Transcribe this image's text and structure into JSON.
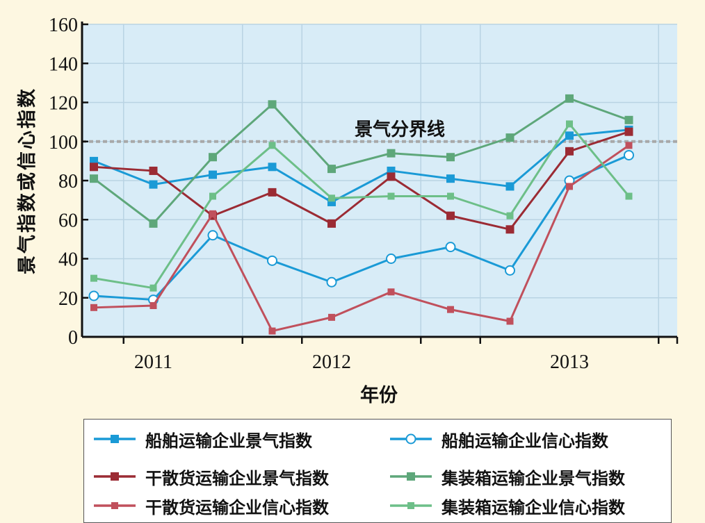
{
  "chart_data": {
    "type": "line",
    "title": "",
    "xlabel": "年份",
    "ylabel": "景气指数或信心指数",
    "ylim": [
      0,
      160
    ],
    "yticks": [
      0,
      20,
      40,
      60,
      80,
      100,
      120,
      140,
      160
    ],
    "xlim": [
      0,
      11.6
    ],
    "x_tick_labels": [
      {
        "label": "2011",
        "x": 1.0
      },
      {
        "label": "2012",
        "x": 4.0
      },
      {
        "label": "2013",
        "x": 8.0
      }
    ],
    "x": [
      0,
      1,
      2,
      3,
      4,
      5,
      6,
      7,
      8,
      9,
      10
    ],
    "grid": true,
    "reference_line": {
      "y": 100,
      "label": "景气分界线",
      "color": "#a8a8a8"
    },
    "legend_position": "bottom",
    "series": [
      {
        "name": "船舶运输企业景气指数",
        "color": "#1a9ad6",
        "marker": "square",
        "style": "solid",
        "values": [
          90,
          78,
          83,
          87,
          69,
          85,
          81,
          77,
          103,
          106,
          null
        ]
      },
      {
        "name": "船舶运输企业信心指数",
        "color": "#1a9ad6",
        "marker": "circle-open",
        "style": "solid",
        "values": [
          21,
          19,
          52,
          39,
          28,
          40,
          46,
          34,
          80,
          93,
          null
        ]
      },
      {
        "name": "干散货运输企业景气指数",
        "color": "#9b2b34",
        "marker": "square",
        "style": "solid",
        "values": [
          87,
          85,
          62,
          74,
          58,
          82,
          62,
          55,
          95,
          105,
          null
        ]
      },
      {
        "name": "集装箱运输企业景气指数",
        "color": "#5ea77a",
        "marker": "square",
        "style": "solid",
        "values": [
          81,
          58,
          92,
          119,
          86,
          94,
          92,
          102,
          122,
          111,
          null
        ]
      },
      {
        "name": "干散货运输企业信心指数",
        "color": "#c0505c",
        "marker": "small-square",
        "style": "solid",
        "values": [
          15,
          16,
          63,
          3,
          10,
          23,
          14,
          8,
          77,
          98,
          null
        ]
      },
      {
        "name": "集装箱运输企业信心指数",
        "color": "#6dbf88",
        "marker": "small-square",
        "style": "solid",
        "values": [
          30,
          25,
          72,
          98,
          71,
          72,
          72,
          62,
          109,
          72,
          null
        ]
      }
    ]
  }
}
